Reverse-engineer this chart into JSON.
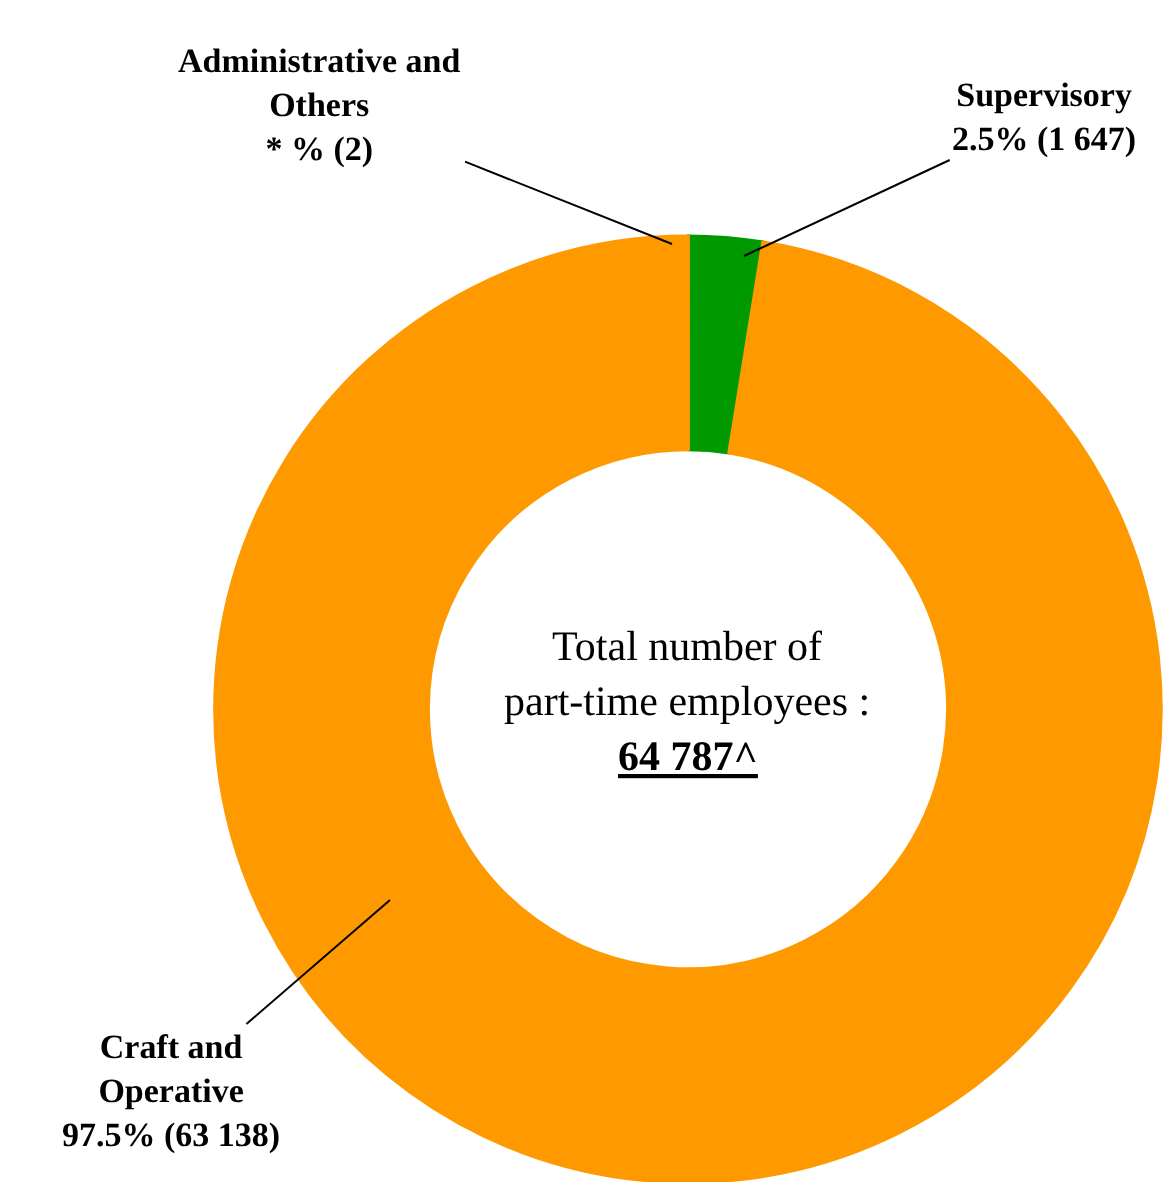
{
  "chart_data": {
    "type": "donut",
    "categories": [
      "Administrative and Others",
      "Supervisory",
      "Craft and Operative"
    ],
    "values": [
      2,
      1647,
      63138
    ],
    "value_labels": [
      "* % (2)",
      "2.5% (1 647)",
      "97.5% (63 138)"
    ],
    "colors": [
      "#009900",
      "#009900",
      "#ff9900"
    ],
    "annotations": [
      "Total number of\npart-time employees :",
      "64 787^"
    ],
    "legend": false
  }
}
